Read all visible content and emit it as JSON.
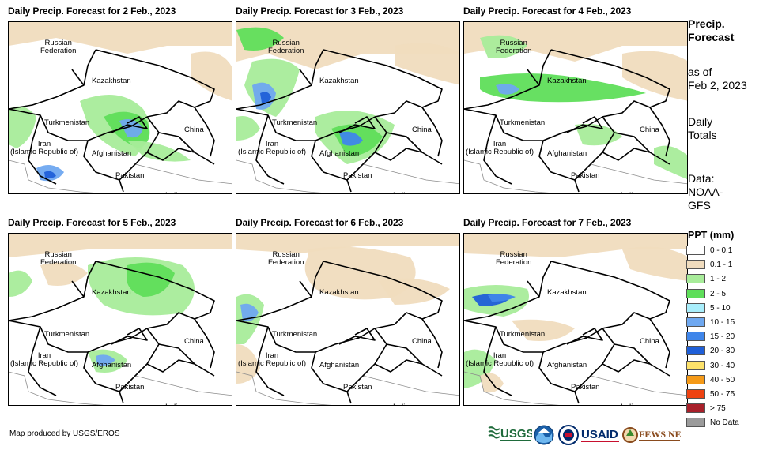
{
  "panels": [
    {
      "title": "Daily Precip. Forecast for 2 Feb., 2023",
      "day": 2
    },
    {
      "title": "Daily Precip. Forecast for 3 Feb., 2023",
      "day": 3
    },
    {
      "title": "Daily Precip. Forecast for 4 Feb., 2023",
      "day": 4
    },
    {
      "title": "Daily Precip. Forecast for 5 Feb., 2023",
      "day": 5
    },
    {
      "title": "Daily Precip. Forecast for 6 Feb., 2023",
      "day": 6
    },
    {
      "title": "Daily Precip. Forecast for 7 Feb., 2023",
      "day": 7
    }
  ],
  "map_labels": {
    "russia": "Russian\nFederation",
    "kazakhstan": "Kazakhstan",
    "turkmenistan": "Turkmenistan",
    "iran": "Iran\n(Islamic Republic of)",
    "afghanistan": "Afghanistan",
    "china": "China",
    "pakistan": "Pakistan",
    "india": "India"
  },
  "sidebar": {
    "title_line1": "Precip.",
    "title_line2": "Forecast",
    "asof_line1": "as of",
    "asof_line2": "Feb 2, 2023",
    "totals_line1": "Daily",
    "totals_line2": "Totals",
    "data_line1": "Data:",
    "data_line2": "NOAA-",
    "data_line3": "GFS"
  },
  "legend": {
    "title": "PPT (mm)",
    "items": [
      {
        "label": "0 - 0.1",
        "color": "#ffffff"
      },
      {
        "label": "0.1 - 1",
        "color": "#f0dcbe"
      },
      {
        "label": "1 - 2",
        "color": "#a8ec9a"
      },
      {
        "label": "2 - 5",
        "color": "#5fde5a"
      },
      {
        "label": "5 - 10",
        "color": "#a9eefb"
      },
      {
        "label": "10 - 15",
        "color": "#6fa8f0"
      },
      {
        "label": "15 - 20",
        "color": "#3f86ea"
      },
      {
        "label": "20 - 30",
        "color": "#1f5fd8"
      },
      {
        "label": "30 - 40",
        "color": "#fde26a"
      },
      {
        "label": "40 - 50",
        "color": "#f59a18"
      },
      {
        "label": "50 - 75",
        "color": "#ee4211"
      },
      {
        "label": "> 75",
        "color": "#a8202a"
      },
      {
        "label": "No Data",
        "color": "#9b9b9b"
      }
    ]
  },
  "footer": {
    "credit": "Map produced by USGS/EROS"
  },
  "logos": [
    {
      "icon": "usgs-logo",
      "text": "USGS"
    },
    {
      "icon": "noaa-logo",
      "text": ""
    },
    {
      "icon": "usaid-seal-logo",
      "text": ""
    },
    {
      "icon": "usaid-logo",
      "text": "USAID"
    },
    {
      "icon": "fewsnet-logo",
      "text": "FEWS NET"
    }
  ]
}
